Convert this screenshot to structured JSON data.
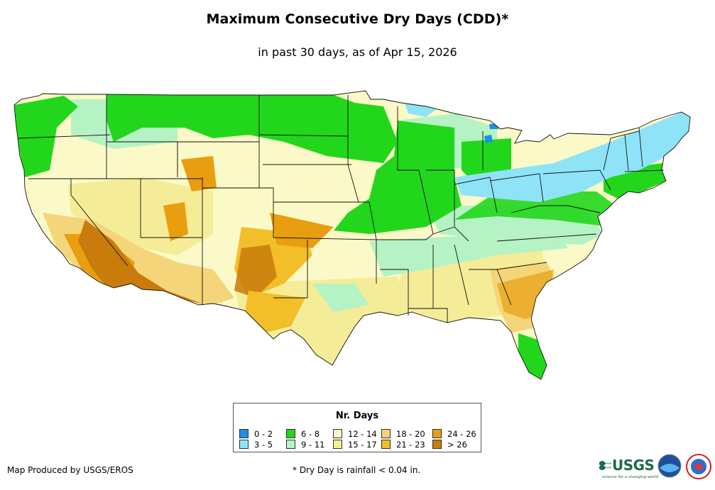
{
  "title": "Maximum Consecutive Dry Days (CDD)*",
  "subtitle": "in past 30 days, as of Apr 15, 2026",
  "legend": {
    "title": "Nr. Days",
    "items": [
      {
        "label": "0 - 2",
        "color": "#1a8fe8"
      },
      {
        "label": "3 - 5",
        "color": "#8fe3f7"
      },
      {
        "label": "6 - 8",
        "color": "#22d61c"
      },
      {
        "label": "9 - 11",
        "color": "#b5f2c4"
      },
      {
        "label": "12 - 14",
        "color": "#fbf9c7"
      },
      {
        "label": "15 - 17",
        "color": "#f5ec98"
      },
      {
        "label": "18 - 20",
        "color": "#f5d57a"
      },
      {
        "label": "21 - 23",
        "color": "#f2bf2a"
      },
      {
        "label": "24 - 26",
        "color": "#e89e10"
      },
      {
        "label": "> 26",
        "color": "#c97b0c"
      }
    ]
  },
  "credit": "Map Produced by USGS/EROS",
  "footnote": "* Dry Day is rainfall < 0.04 in.",
  "logos": {
    "usgs": "USGS",
    "usgs_tagline": "science for a changing world",
    "others": [
      "noaa-logo",
      "national-weather-service-logo"
    ]
  },
  "map": {
    "region": "Contiguous United States",
    "basemap": "state-boundaries"
  }
}
